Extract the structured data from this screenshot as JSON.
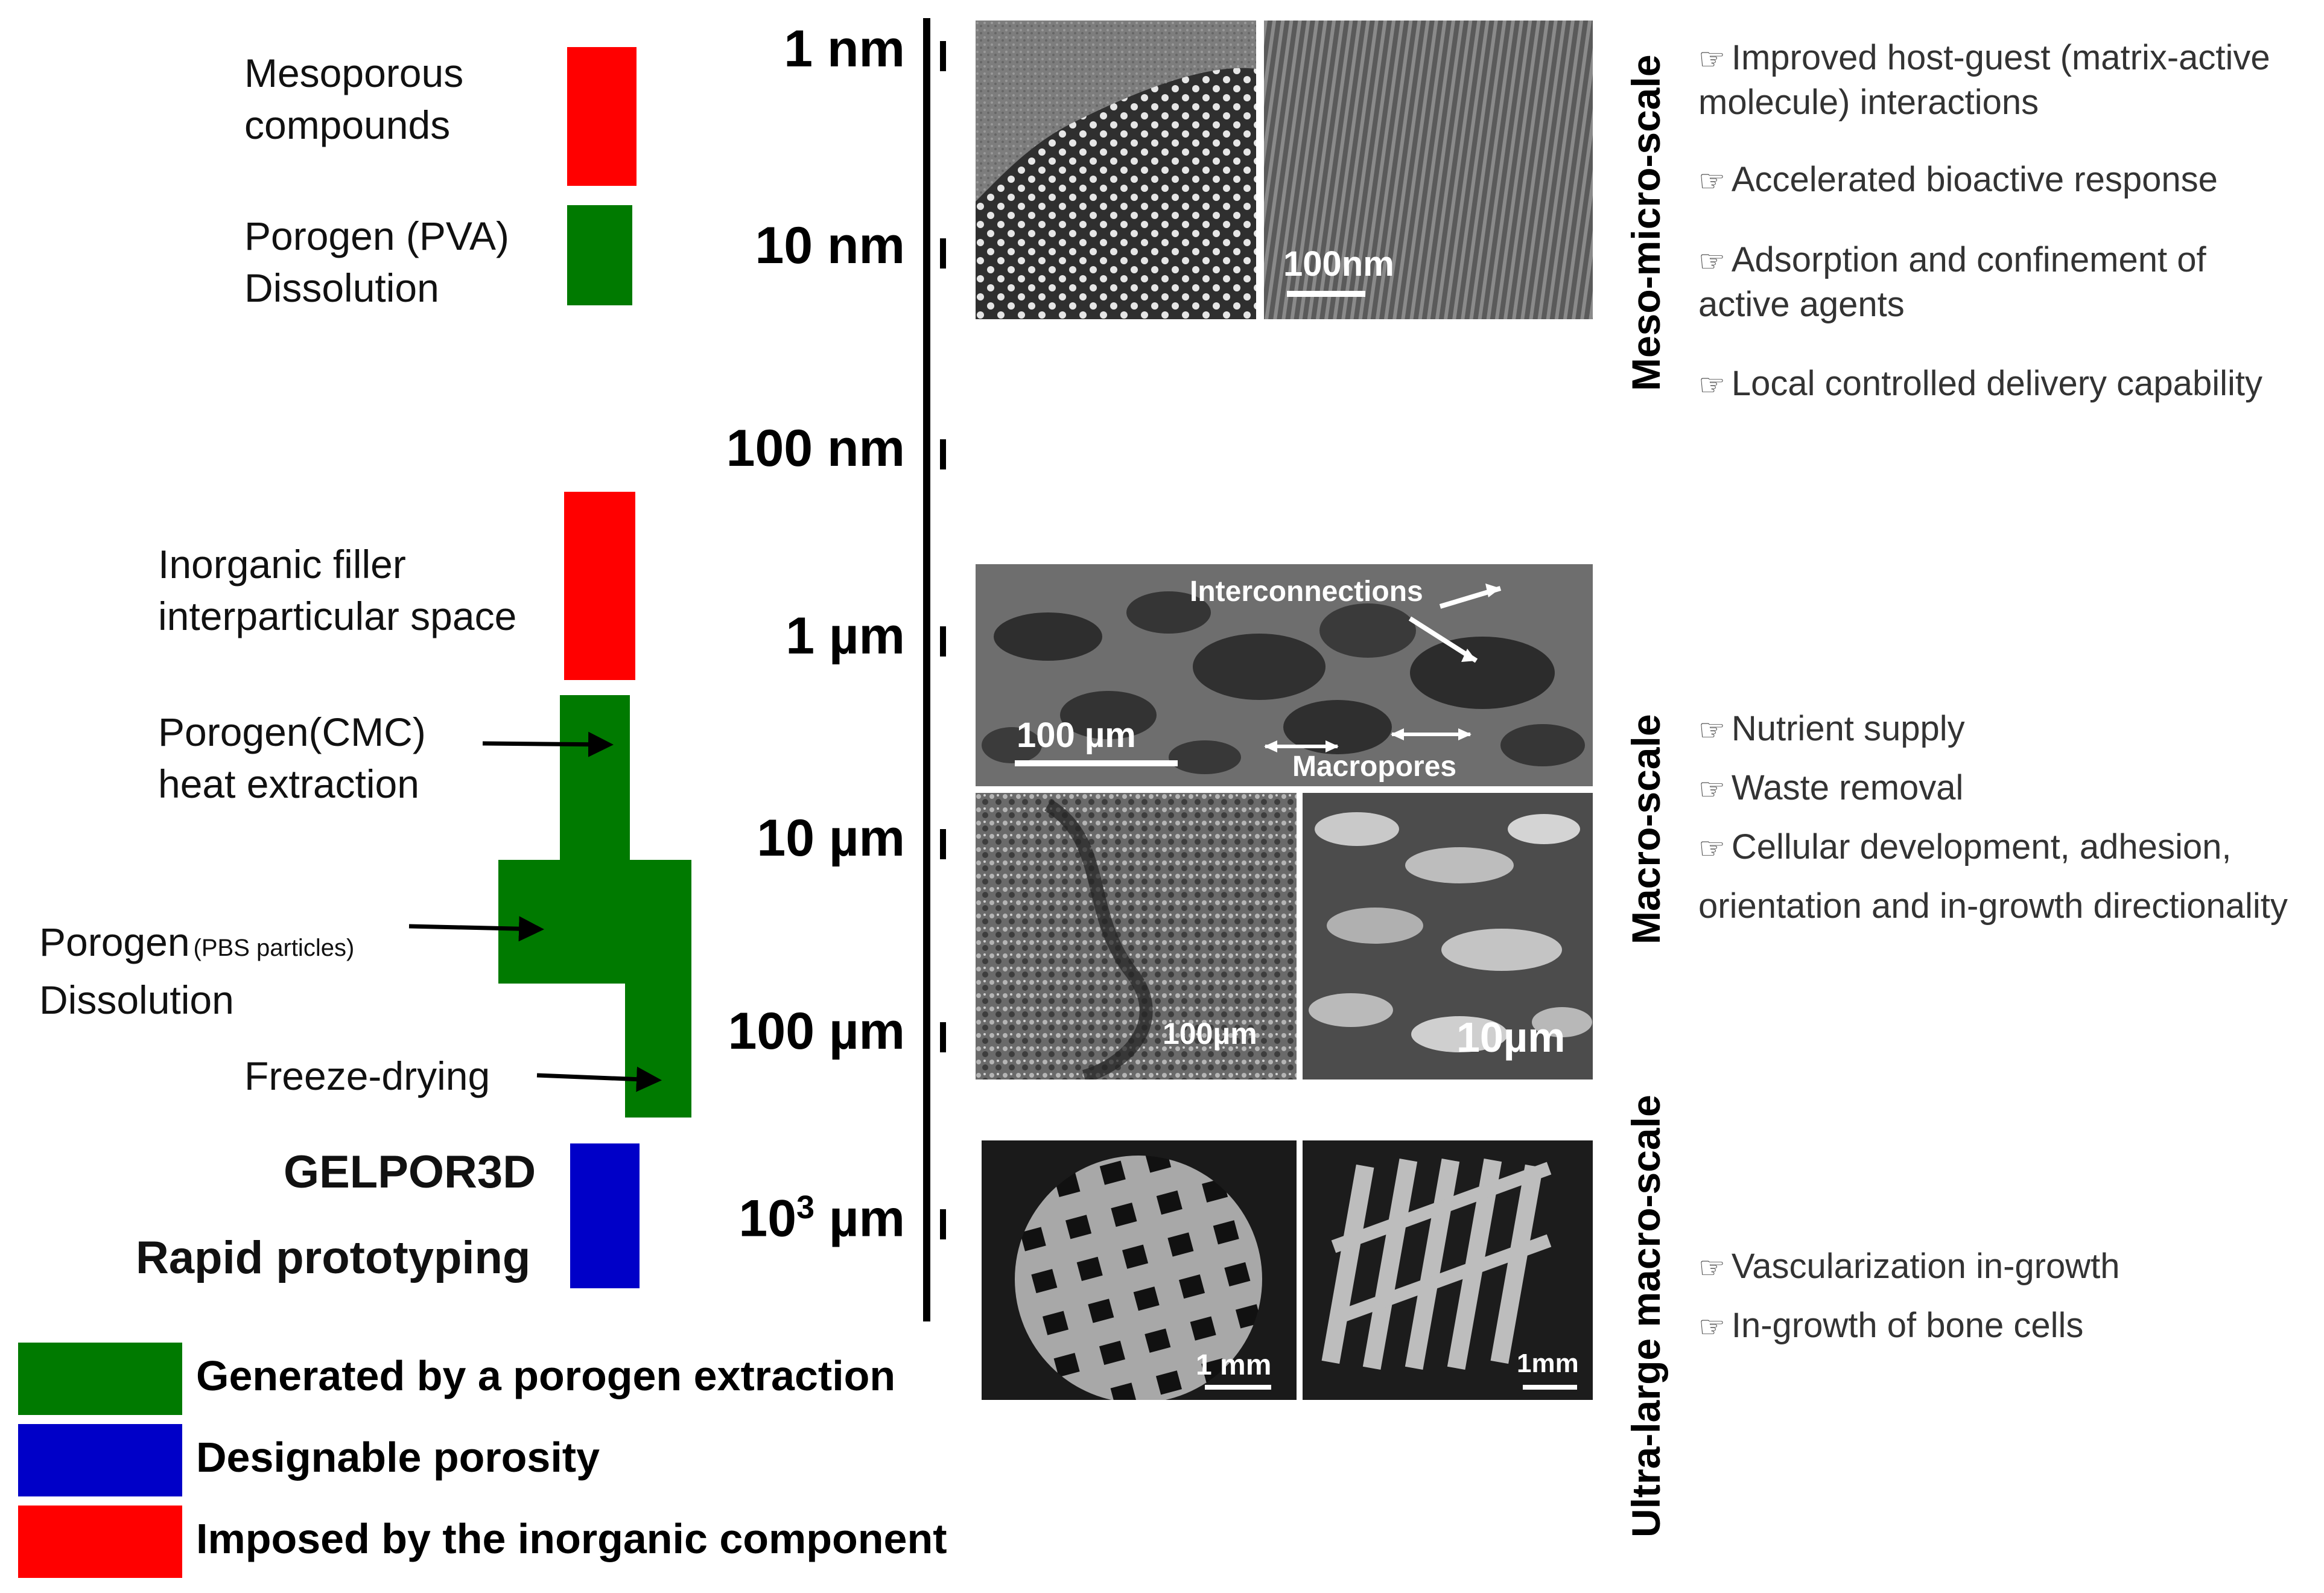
{
  "left_labels": {
    "mesoporous": [
      "Mesoporous",
      "compounds"
    ],
    "pva": [
      "Porogen (PVA)",
      "Dissolution"
    ],
    "inorganic": [
      "Inorganic filler",
      "interparticular space"
    ],
    "cmc": [
      "Porogen(CMC)",
      "heat extraction"
    ],
    "pbs_main": "Porogen",
    "pbs_sub": "(PBS particles)",
    "pbs_line2": "Dissolution",
    "freeze": "Freeze-drying",
    "gelpor": "GELPOR3D",
    "rapid": "Rapid prototyping"
  },
  "scale_labels": [
    "1 nm",
    "10 nm",
    "100 nm",
    "1 µm",
    "10 µm",
    "100 µm"
  ],
  "scale_last": {
    "base": "10",
    "exp": "3",
    "unit": " µm"
  },
  "legend": [
    {
      "label": "Generated by a porogen extraction",
      "color": "#007a00"
    },
    {
      "label": "Designable porosity",
      "color": "#0000c8"
    },
    {
      "label": "Imposed by the inorganic component",
      "color": "#ff0000"
    }
  ],
  "image_labels": {
    "tem_scale": "100nm",
    "interconnections": "Interconnections",
    "sem_scale": "100 µm",
    "macropores": "Macropores",
    "pbs_scale_a": "100µm",
    "pbs_scale_b": "10µm",
    "proto_scale_a": "1 mm",
    "proto_scale_b": "1mm"
  },
  "scale_categories": [
    "Meso-micro-scale",
    "Macro-scale",
    "Ultra-large macro-scale"
  ],
  "features": {
    "meso": [
      [
        "Improved host-guest (matrix-active",
        "molecule) interactions"
      ],
      [
        "Accelerated bioactive response"
      ],
      [
        "Adsorption and confinement of",
        "active agents"
      ],
      [
        "Local controlled delivery capability"
      ]
    ],
    "macro": [
      [
        "Nutrient supply"
      ],
      [
        "Waste removal"
      ],
      [
        "Cellular development, adhesion,"
      ],
      [
        "orientation and in-growth directionality"
      ]
    ],
    "ultra": [
      [
        "Vascularization in-growth"
      ],
      [
        "In-growth of bone cells"
      ]
    ]
  },
  "hand_icon": "☞",
  "colors": {
    "red": "#ff0000",
    "green": "#007a00",
    "blue": "#0000c8"
  }
}
